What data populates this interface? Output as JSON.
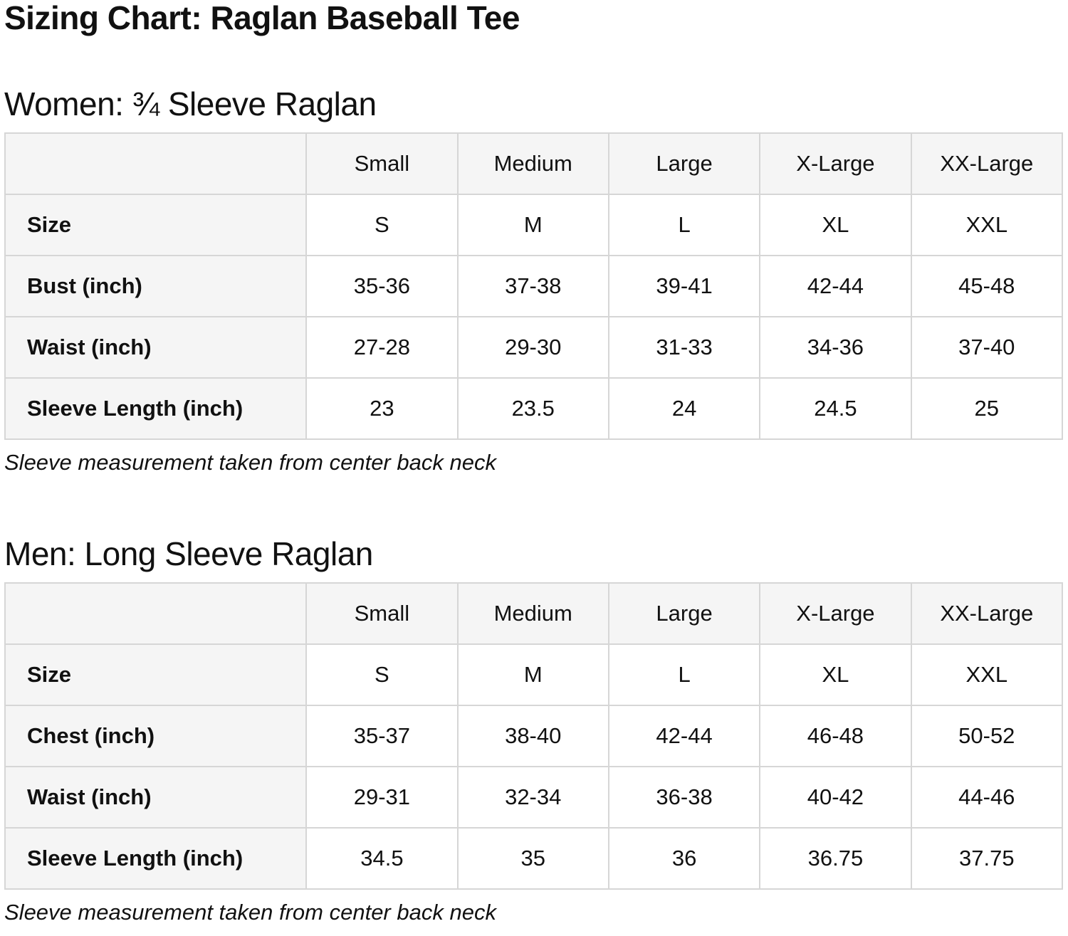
{
  "page": {
    "title": "Sizing Chart: Raglan Baseball Tee"
  },
  "colors": {
    "background": "#ffffff",
    "text": "#111111",
    "header_cell_bg": "#f5f5f5",
    "table_border": "#d6d6d6"
  },
  "sections": [
    {
      "heading": "Women: ¾ Sleeve Raglan",
      "note": "Sleeve measurement taken from center back neck",
      "table": {
        "column_headers": [
          "",
          "Small",
          "Medium",
          "Large",
          "X-Large",
          "XX-Large"
        ],
        "rows": [
          {
            "label": "Size",
            "values": [
              "S",
              "M",
              "L",
              "XL",
              "XXL"
            ]
          },
          {
            "label": "Bust (inch)",
            "values": [
              "35-36",
              "37-38",
              "39-41",
              "42-44",
              "45-48"
            ]
          },
          {
            "label": "Waist (inch)",
            "values": [
              "27-28",
              "29-30",
              "31-33",
              "34-36",
              "37-40"
            ]
          },
          {
            "label": "Sleeve Length (inch)",
            "values": [
              "23",
              "23.5",
              "24",
              "24.5",
              "25"
            ]
          }
        ]
      }
    },
    {
      "heading": "Men: Long Sleeve Raglan",
      "note": "Sleeve measurement taken from center back neck",
      "table": {
        "column_headers": [
          "",
          "Small",
          "Medium",
          "Large",
          "X-Large",
          "XX-Large"
        ],
        "rows": [
          {
            "label": "Size",
            "values": [
              "S",
              "M",
              "L",
              "XL",
              "XXL"
            ]
          },
          {
            "label": "Chest (inch)",
            "values": [
              "35-37",
              "38-40",
              "42-44",
              "46-48",
              "50-52"
            ]
          },
          {
            "label": "Waist (inch)",
            "values": [
              "29-31",
              "32-34",
              "36-38",
              "40-42",
              "44-46"
            ]
          },
          {
            "label": "Sleeve Length (inch)",
            "values": [
              "34.5",
              "35",
              "36",
              "36.75",
              "37.75"
            ]
          }
        ]
      }
    }
  ]
}
